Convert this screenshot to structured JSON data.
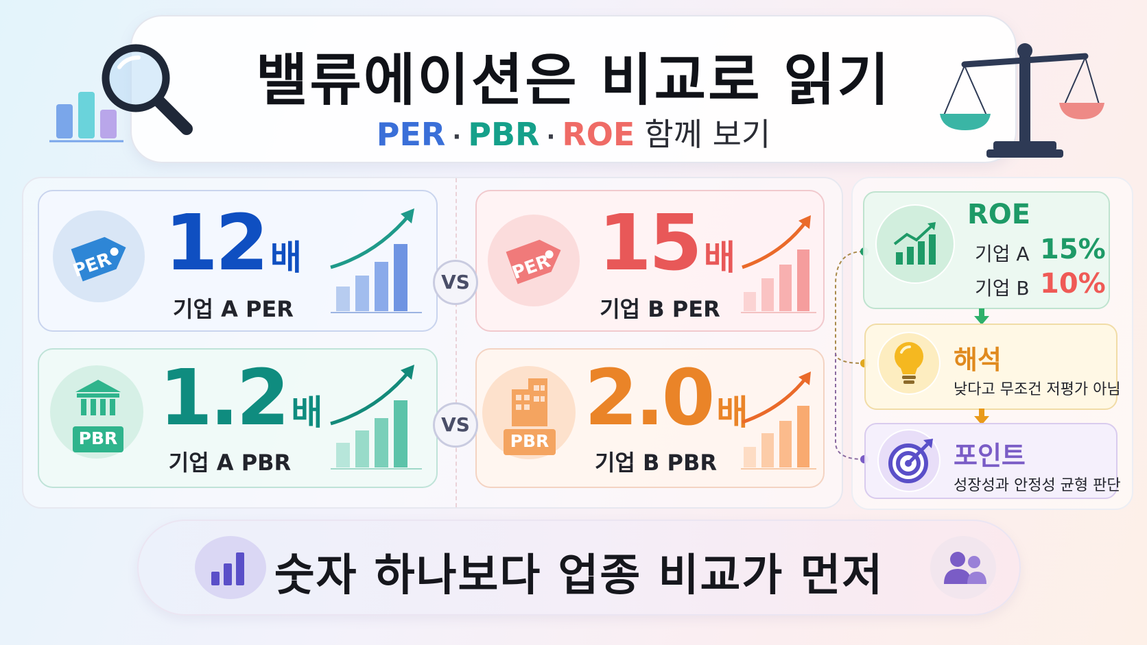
{
  "title": {
    "main": "밸류에이션은 비교로 읽기",
    "sub_per": "PER",
    "sub_dot": "·",
    "sub_pbr": "PBR",
    "sub_roe": "ROE",
    "sub_rest": "함께 보기"
  },
  "cards": {
    "a_per": {
      "badge": "PER",
      "value": "12",
      "unit": "배",
      "label": "기업 A PER"
    },
    "b_per": {
      "badge": "PER",
      "value": "15",
      "unit": "배",
      "label": "기업 B PER"
    },
    "a_pbr": {
      "badge": "PBR",
      "value": "1.2",
      "unit": "배",
      "label": "기업 A PBR"
    },
    "b_pbr": {
      "badge": "PBR",
      "value": "2.0",
      "unit": "배",
      "label": "기업 B PBR"
    },
    "vs_label": "VS"
  },
  "roe": {
    "title": "ROE",
    "rows": [
      {
        "label": "기업 A",
        "value": "15%"
      },
      {
        "label": "기업 B",
        "value": "10%"
      }
    ]
  },
  "interpretation": {
    "title": "해석",
    "text": "낮다고 무조건 저평가 아님"
  },
  "point": {
    "title": "포인트",
    "text": "성장성과 안정성 균형 판단"
  },
  "bottom": {
    "text": "숫자 하나보다 업종 비교가 먼저"
  },
  "colors": {
    "per": "#3a6fd8",
    "pbr": "#15a08a",
    "roe": "#ef6b66",
    "a_per": "#0f4fc1",
    "b_per": "#e85858",
    "a_pbr": "#0f8c7f",
    "b_pbr": "#ea8428",
    "roe_green": "#1e9a67",
    "interp": "#e08a1e",
    "point": "#7a5cc6"
  },
  "icons": [
    "bar-chart-icon",
    "magnifier-icon",
    "scale-icon",
    "price-tag-icon",
    "bank-icon",
    "building-icon",
    "growth-chart-icon",
    "lightbulb-icon",
    "target-icon",
    "people-icon",
    "down-arrow-icon"
  ]
}
